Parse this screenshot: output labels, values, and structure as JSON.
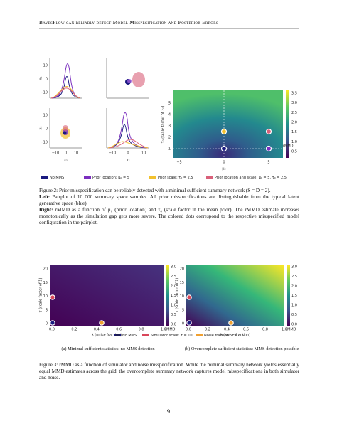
{
  "header": {
    "title": "BayesFlow can reliably detect Model Misspecification and Posterior Errors"
  },
  "figure2": {
    "pairplot": {
      "y_labels": [
        "x₁",
        "x₂"
      ],
      "x_labels": [
        "x₁",
        "x₂"
      ],
      "y_ticks": [
        "10",
        "0",
        "−10"
      ],
      "x_ticks": [
        "−10",
        "0",
        "10"
      ]
    },
    "heatmap": {
      "x_label": "μ₀",
      "y_label": "τ₀ (scale factor of Σ₀)",
      "x_ticks": [
        "−5",
        "0",
        "5"
      ],
      "y_ticks": [
        "5",
        "4",
        "3",
        "2",
        "1"
      ],
      "colorbar_ticks": [
        "3.5",
        "3.0",
        "2.5",
        "2.0",
        "1.5",
        "1.0",
        "0.5"
      ],
      "colorbar_label": "r̂MMD"
    },
    "legend": [
      "No MMS",
      "Prior location: μ₀ = 5",
      "Prior scale: τ₀ = 2.5",
      "Prior location and scale: μ₀ = 5, τ₀ = 2.5"
    ],
    "caption": {
      "lead": "Figure 2: Prior misspecification can be reliably detected with a minimal sufficient summary network (S = D = 2).",
      "left_head": "Left:",
      "left_text": "Pairplot of 10 000 summary space samples. All prior misspecifications are distinguishable from the typical latent generative space (blue).",
      "right_head": "Right:",
      "right_text": "r̂MMD as a function of μ₀ (prior location) and τ₀ (scale factor in the mean prior). The r̂MMD estimate increases monotonically as the simulation gap gets more severe. The colored dots correspond to the respective misspecified model configuration in the pairplot."
    }
  },
  "figure3": {
    "panels": [
      {
        "x_label": "λ (noise fraction)",
        "y_label": "τ (scale factor of Σ)",
        "x_ticks": [
          "0.0",
          "0.2",
          "0.4",
          "0.6",
          "0.8",
          "1.0"
        ],
        "y_ticks": [
          "20",
          "15",
          "10",
          "5",
          "0"
        ],
        "colorbar_ticks": [
          "3.0",
          "2.5",
          "2.0",
          "1.5",
          "1.0",
          "0.5",
          "0.0"
        ],
        "colorbar_label": "r̂MMD",
        "subcaption": "(a) Minimal sufficient statistics: no MMS detection"
      },
      {
        "x_label": "λ (noise fraction)",
        "y_label": "τ (scale factor of Σ)",
        "x_ticks": [
          "0.0",
          "0.2",
          "0.4",
          "0.6",
          "0.8",
          "1.0"
        ],
        "y_ticks": [
          "20",
          "15",
          "10",
          "5",
          "0"
        ],
        "colorbar_ticks": [
          "3.0",
          "2.5",
          "2.0",
          "1.5",
          "1.0",
          "0.5",
          "0.0"
        ],
        "colorbar_label": "r̂MMD",
        "subcaption": "(b) Overcomplete sufficient statistics: MMS detection possible"
      }
    ],
    "legend": [
      "No MMS",
      "Simulator scale: τ = 10",
      "Noise fraction: λ = 0.5"
    ],
    "caption": "Figure 3: r̂MMD as a function of simulator and noise misspecification. While the minimal summary network yields essentially equal MMD estimates across the grid, the overcomplete summary network captures model misspecifications in both simulator and noise."
  },
  "page_number": "9"
}
